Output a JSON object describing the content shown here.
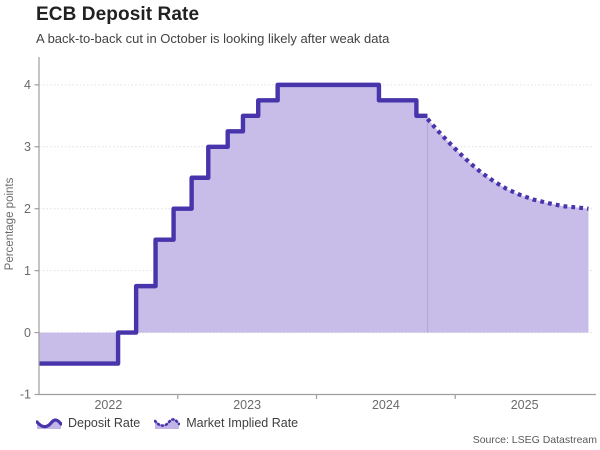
{
  "chart_data": {
    "type": "area",
    "title": "ECB Deposit Rate",
    "subtitle": "A back-to-back cut in October is looking likely after weak data",
    "ylabel": "Percentage points",
    "source": "Source: LSEG Datastream",
    "x_range": [
      2022.0,
      2026.0
    ],
    "y_range": [
      -1,
      4.45
    ],
    "y_ticks": [
      -1,
      0,
      1,
      2,
      3,
      4
    ],
    "y_gridlines": [
      0,
      1,
      2,
      3,
      4
    ],
    "x_ticks": [
      2023,
      2024,
      2025
    ],
    "x_labels": [
      {
        "label": "2022",
        "pos": 2022.5
      },
      {
        "label": "2023",
        "pos": 2023.5
      },
      {
        "label": "2024",
        "pos": 2024.5
      },
      {
        "label": "2025",
        "pos": 2025.5
      }
    ],
    "legend": [
      {
        "label": "Deposit Rate",
        "style": "solid"
      },
      {
        "label": "Market Implied Rate",
        "style": "dotted"
      }
    ],
    "colors": {
      "line": "#4834ab",
      "fill": "#c2b5e6",
      "grid": "#e0e0e0",
      "axis": "#9e9e9e",
      "tick_text": "#6b6b6b"
    },
    "grid": true,
    "legend_position": "bottom-left",
    "series": [
      {
        "name": "Deposit Rate",
        "style": "solid-step",
        "steps": [
          {
            "x": 2022.0,
            "y": -0.5
          },
          {
            "x": 2022.57,
            "y": 0.0
          },
          {
            "x": 2022.7,
            "y": 0.75
          },
          {
            "x": 2022.84,
            "y": 1.5
          },
          {
            "x": 2022.97,
            "y": 2.0
          },
          {
            "x": 2023.1,
            "y": 2.5
          },
          {
            "x": 2023.22,
            "y": 3.0
          },
          {
            "x": 2023.36,
            "y": 3.25
          },
          {
            "x": 2023.47,
            "y": 3.5
          },
          {
            "x": 2023.58,
            "y": 3.75
          },
          {
            "x": 2023.72,
            "y": 4.0
          },
          {
            "x": 2024.45,
            "y": 3.75
          },
          {
            "x": 2024.72,
            "y": 3.5
          }
        ],
        "x_end": 2024.8
      },
      {
        "name": "Market Implied Rate",
        "style": "dotted",
        "points": [
          [
            2024.8,
            3.45
          ],
          [
            2024.87,
            3.27
          ],
          [
            2024.95,
            3.08
          ],
          [
            2025.03,
            2.9
          ],
          [
            2025.11,
            2.73
          ],
          [
            2025.19,
            2.58
          ],
          [
            2025.28,
            2.44
          ],
          [
            2025.37,
            2.32
          ],
          [
            2025.46,
            2.23
          ],
          [
            2025.56,
            2.15
          ],
          [
            2025.67,
            2.09
          ],
          [
            2025.78,
            2.04
          ],
          [
            2025.88,
            2.02
          ],
          [
            2025.96,
            2.0
          ]
        ]
      }
    ]
  }
}
